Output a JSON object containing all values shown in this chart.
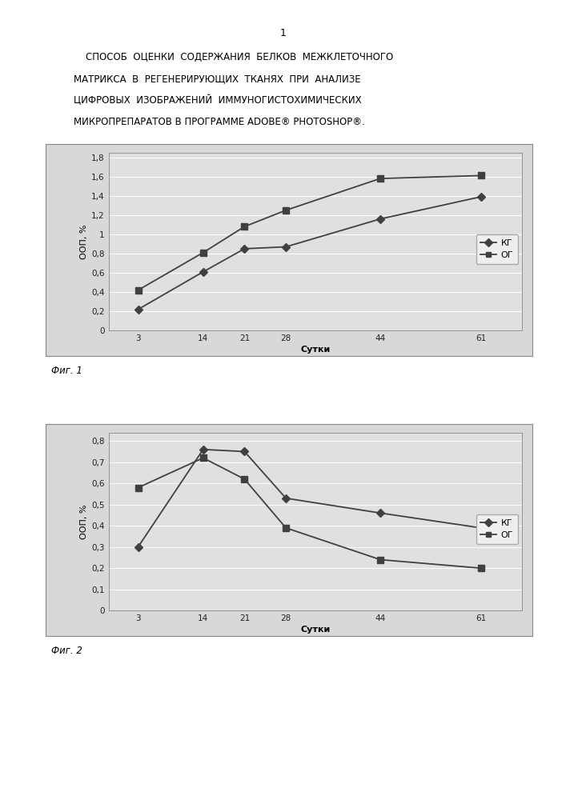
{
  "page_number": "1",
  "header_lines": [
    "    СПОСОБ  ОЦЕНКИ  СОДЕРЖАНИЯ  БЕЛКОВ  МЕЖКЛЕТОЧНОГО",
    "МАТРИКСА  В  РЕГЕНЕРИРУЮЩИХ  ТКАНЯХ  ПРИ  АНАЛИЗЕ",
    "ЦИФРОВЫХ  ИЗОБРАЖЕНИЙ  ИММУНОГИСТОХИМИЧЕСКИХ",
    "МИКРОПРЕПАРАТОВ В ПРОГРАММЕ ADOBE® PHOTOSHOP®."
  ],
  "fig1": {
    "x": [
      3,
      14,
      21,
      28,
      44,
      61
    ],
    "kg_y": [
      0.22,
      0.61,
      0.85,
      0.87,
      1.16,
      1.39
    ],
    "og_y": [
      0.42,
      0.81,
      1.08,
      1.25,
      1.58,
      1.61
    ],
    "ylabel": "ООП, %",
    "xlabel": "Сутки",
    "yticks": [
      0,
      0.2,
      0.4,
      0.6,
      0.8,
      1.0,
      1.2,
      1.4,
      1.6,
      1.8
    ],
    "ytick_labels": [
      "0",
      "0,2",
      "0,4",
      "0,6",
      "0,8",
      "1",
      "1,2",
      "1,4",
      "1,6",
      "1,8"
    ],
    "ylim": [
      0,
      1.85
    ],
    "xlim": [
      -2,
      68
    ],
    "legend_kg": "КГ",
    "legend_og": "ОГ",
    "fig_label": "Фиг. 1",
    "line_color": "#404040",
    "marker_kg": "D",
    "marker_og": "s"
  },
  "fig2": {
    "x": [
      3,
      14,
      21,
      28,
      44,
      61
    ],
    "kg_y": [
      0.3,
      0.76,
      0.75,
      0.53,
      0.46,
      0.39
    ],
    "og_y": [
      0.58,
      0.72,
      0.62,
      0.39,
      0.24,
      0.2
    ],
    "ylabel": "ООП, %",
    "xlabel": "Сутки",
    "yticks": [
      0,
      0.1,
      0.2,
      0.3,
      0.4,
      0.5,
      0.6,
      0.7,
      0.8
    ],
    "ytick_labels": [
      "0",
      "0,1",
      "0,2",
      "0,3",
      "0,4",
      "0,5",
      "0,6",
      "0,7",
      "0,8"
    ],
    "ylim": [
      0,
      0.84
    ],
    "xlim": [
      -2,
      68
    ],
    "legend_kg": "КГ",
    "legend_og": "ОГ",
    "fig_label": "Фиг. 2",
    "line_color": "#404040",
    "marker_kg": "D",
    "marker_og": "s"
  },
  "background_color": "#ffffff",
  "chart_bg": "#e0e0e0",
  "font_size_header": 8.5,
  "font_size_axis": 8,
  "font_size_tick": 7.5,
  "font_size_legend": 8,
  "font_size_figlabel": 8.5,
  "font_size_pagenum": 9
}
